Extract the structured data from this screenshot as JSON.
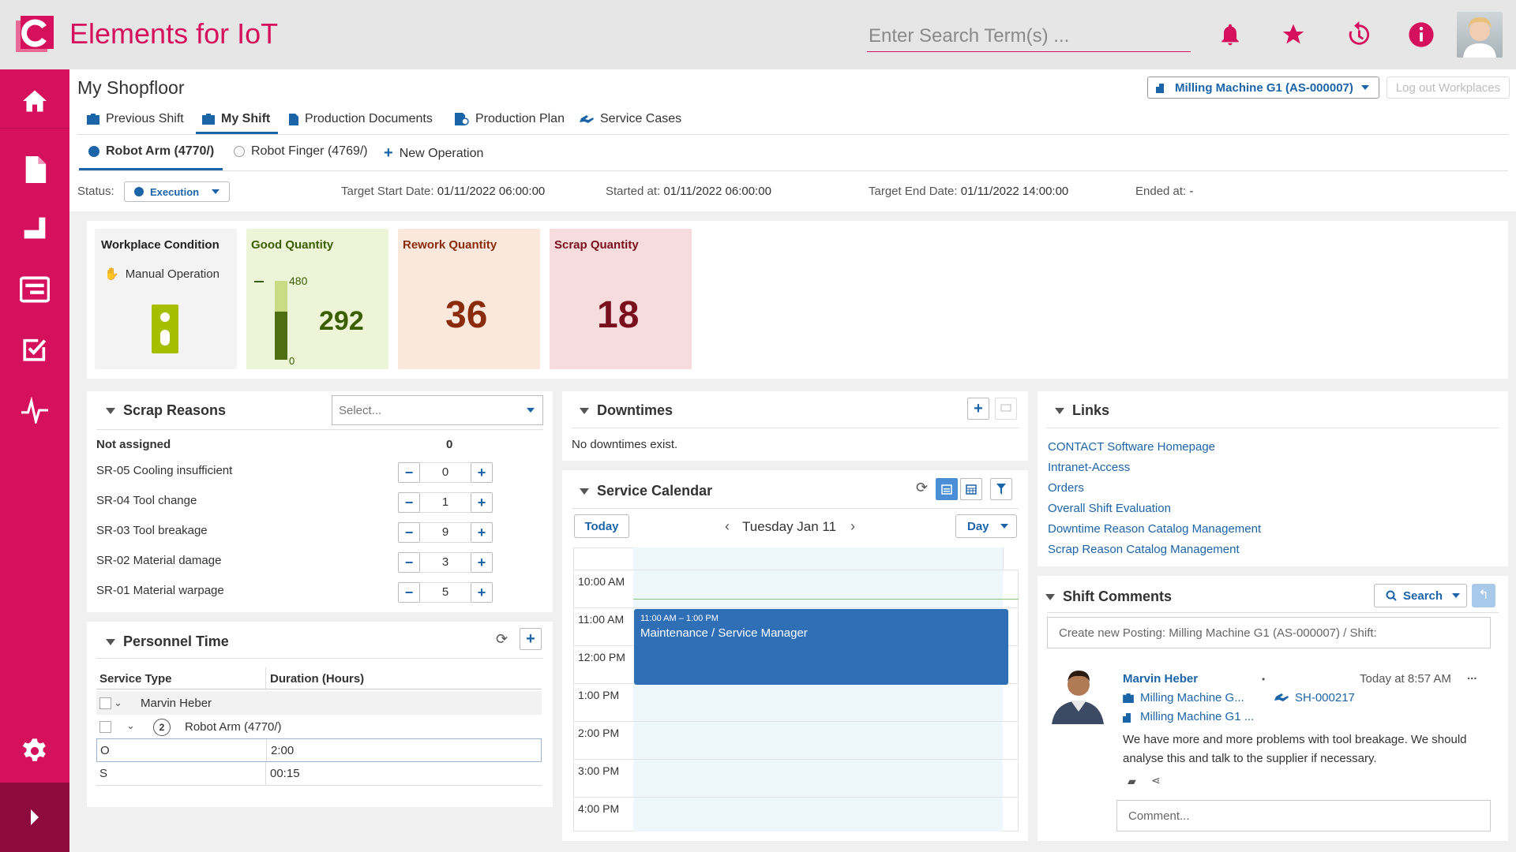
{
  "app": {
    "title": "Elements for IoT",
    "search_placeholder": "Enter Search Term(s) ..."
  },
  "colors": {
    "brand": "#d5105c",
    "accent": "#1b64a8",
    "good": "#a6be00",
    "rework": "#8a2b0c",
    "scrap": "#7a0f1e"
  },
  "topbar_icons": [
    "bell-icon",
    "star-icon",
    "history-icon",
    "info-icon"
  ],
  "sidebar": {
    "items": [
      "home-icon",
      "document-icon",
      "shopfloor-icon",
      "board-icon",
      "task-icon",
      "pulse-icon",
      "gear-icon"
    ],
    "expand_icon": "chevron-right-icon"
  },
  "page": {
    "title": "My Shopfloor",
    "machine_selector": "Milling Machine G1 (AS-000007)",
    "logout_button": "Log out Workplaces",
    "tabs": [
      "Previous Shift",
      "My Shift",
      "Production Documents",
      "Production Plan",
      "Service Cases"
    ],
    "active_tab": "My Shift",
    "subtabs": [
      "Robot Arm (4770/)",
      "Robot Finger (4769/)",
      "New Operation"
    ]
  },
  "status": {
    "label": "Status:",
    "value": "Execution",
    "target_start_label": "Target Start Date:",
    "target_start": "01/11/2022 06:00:00",
    "started_label": "Started at:",
    "started": "01/11/2022 06:00:00",
    "target_end_label": "Target End Date:",
    "target_end": "01/11/2022 14:00:00",
    "ended_label": "Ended at:",
    "ended": "-"
  },
  "kpis": {
    "workplace": {
      "label": "Workplace Condition",
      "mode": "Manual Operation"
    },
    "good": {
      "label": "Good Quantity",
      "value": "292",
      "target": "480",
      "min": "0",
      "fill_fraction": 0.608
    },
    "rework": {
      "label": "Rework Quantity",
      "value": "36"
    },
    "scrap": {
      "label": "Scrap Quantity",
      "value": "18"
    }
  },
  "scrap_reasons": {
    "title": "Scrap Reasons",
    "select_placeholder": "Select...",
    "not_assigned_label": "Not assigned",
    "not_assigned_value": "0",
    "items": [
      {
        "label": "SR-05 Cooling insufficient",
        "value": "0"
      },
      {
        "label": "SR-04 Tool change",
        "value": "1"
      },
      {
        "label": "SR-03 Tool breakage",
        "value": "9"
      },
      {
        "label": "SR-02 Material damage",
        "value": "3"
      },
      {
        "label": "SR-01 Material warpage",
        "value": "5"
      }
    ]
  },
  "personnel": {
    "title": "Personnel Time",
    "headers": [
      "Service Type",
      "Duration (Hours)"
    ],
    "group": "Marvin Heber",
    "sub_count": "2",
    "sub_label": "Robot Arm (4770/)",
    "rows": [
      {
        "type": "O",
        "duration": "2:00"
      },
      {
        "type": "S",
        "duration": "00:15"
      }
    ]
  },
  "downtimes": {
    "title": "Downtimes",
    "empty": "No downtimes exist."
  },
  "calendar": {
    "title": "Service Calendar",
    "today": "Today",
    "date": "Tuesday Jan 11",
    "view": "Day",
    "hours": [
      "10:00 AM",
      "11:00 AM",
      "12:00 PM",
      "1:00 PM",
      "2:00 PM",
      "3:00 PM",
      "4:00 PM"
    ],
    "event": {
      "time": "11:00 AM – 1:00 PM",
      "title": "Maintenance / Service Manager"
    }
  },
  "links": {
    "title": "Links",
    "items": [
      "CONTACT Software Homepage",
      "Intranet-Access",
      "Orders",
      "Overall Shift Evaluation",
      "Downtime Reason Catalog Management",
      "Scrap Reason Catalog Management"
    ]
  },
  "comments": {
    "title": "Shift Comments",
    "search_button": "Search",
    "new_posting_placeholder": "Create new Posting: Milling Machine G1 (AS-000007) / Shift:",
    "post": {
      "author": "Marvin Heber",
      "time": "Today at 8:57 AM",
      "more": "...",
      "ref1": "Milling Machine G...",
      "ref2": "SH-000217",
      "ref3": "Milling Machine G1 ...",
      "text": "We have more and more problems with tool breakage. We should analyse this and talk to the supplier if necessary."
    },
    "comment_placeholder": "Comment..."
  }
}
